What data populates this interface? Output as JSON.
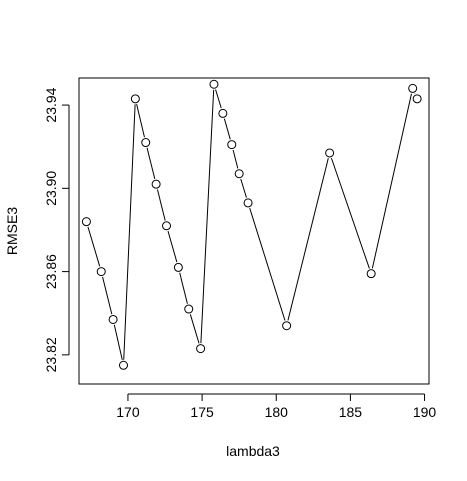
{
  "chart_data": {
    "type": "line",
    "title": "",
    "xlabel": "lambda3",
    "ylabel": "RMSE3",
    "xlim": [
      166.7,
      190.3
    ],
    "ylim": [
      23.806,
      23.953
    ],
    "xticks": [
      170,
      175,
      180,
      185,
      190
    ],
    "xtick_labels": [
      "170",
      "175",
      "180",
      "185",
      "190"
    ],
    "yticks": [
      23.82,
      23.86,
      23.9,
      23.94
    ],
    "ytick_labels": [
      "23.82",
      "23.86",
      "23.90",
      "23.94"
    ],
    "grid": false,
    "markers": "open-circle",
    "series": [
      {
        "x": [
          167.2,
          168.2,
          169.0,
          169.7,
          170.5,
          171.2,
          171.9,
          172.6,
          173.4,
          174.1,
          174.9,
          175.8,
          176.4,
          177.0,
          177.5,
          178.1,
          180.7,
          183.6,
          186.4,
          189.2,
          189.5
        ],
        "y": [
          23.884,
          23.86,
          23.837,
          23.815,
          23.943,
          23.922,
          23.902,
          23.882,
          23.862,
          23.842,
          23.823,
          23.95,
          23.936,
          23.921,
          23.907,
          23.893,
          23.834,
          23.917,
          23.859,
          23.948,
          23.943
        ]
      }
    ]
  }
}
